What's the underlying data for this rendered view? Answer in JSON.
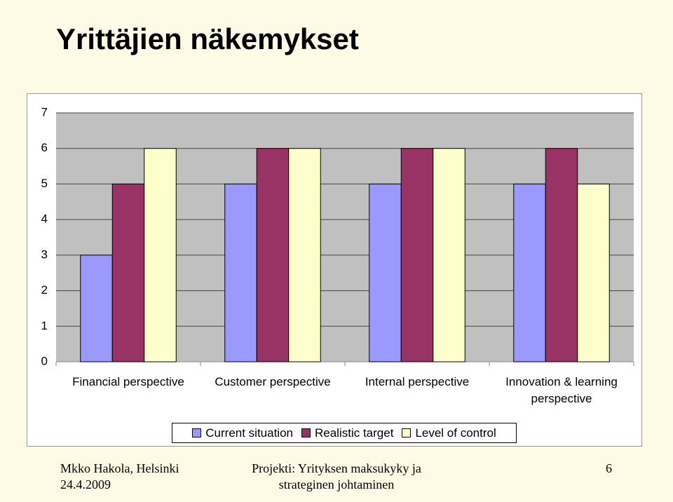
{
  "chart_data": {
    "type": "bar",
    "title": "Yrittäjien näkemykset",
    "categories": [
      "Financial perspective",
      "Customer perspective",
      "Internal perspective",
      "Innovation & learning perspective"
    ],
    "series": [
      {
        "name": "Current situation",
        "color": "#9999ff",
        "values": [
          3,
          5,
          5,
          5
        ]
      },
      {
        "name": "Realistic target",
        "color": "#993366",
        "values": [
          5,
          6,
          6,
          6
        ]
      },
      {
        "name": "Level of control",
        "color": "#ffffcc",
        "values": [
          6,
          6,
          6,
          5
        ]
      }
    ],
    "ylim": [
      0,
      7
    ],
    "yticks": [
      0,
      1,
      2,
      3,
      4,
      5,
      6,
      7
    ],
    "grid": true,
    "legend": "bottom"
  },
  "footer": {
    "author": [
      "Mkko Hakola, Helsinki",
      "24.4.2009"
    ],
    "project": [
      "Projekti: Yrityksen maksukyky ja",
      "strateginen johtaminen"
    ],
    "page": "6"
  }
}
